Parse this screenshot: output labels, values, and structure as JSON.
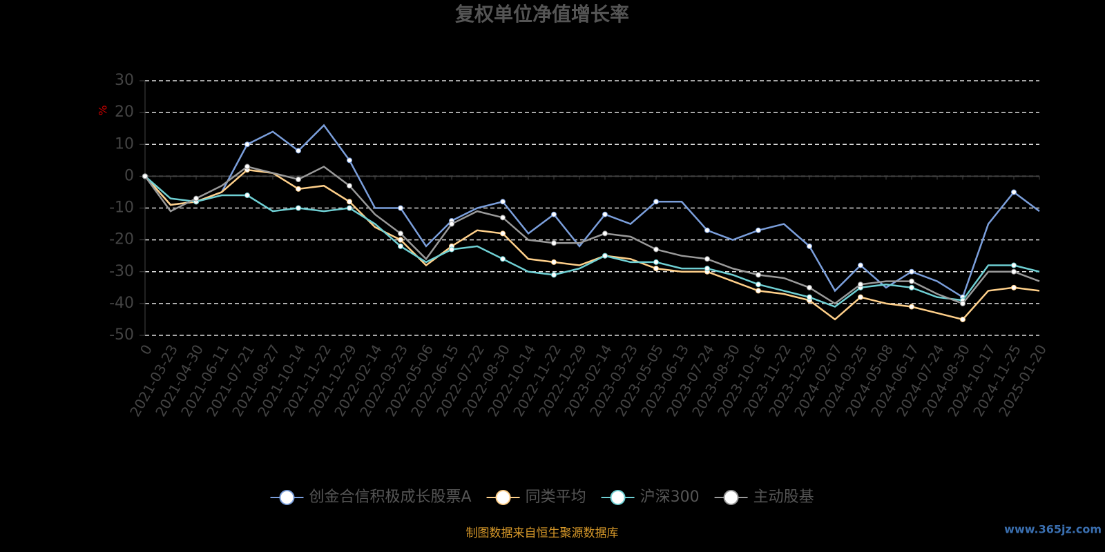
{
  "chart_data": {
    "type": "line",
    "title": "复权单位净值增长率",
    "y_label": "%",
    "source": "制图数据来自恒生聚源数据库",
    "watermark": "www.365jz.com",
    "categories": [
      "0",
      "2021-03-23",
      "2021-04-30",
      "2021-06-11",
      "2021-07-21",
      "2021-08-27",
      "2021-10-14",
      "2021-11-22",
      "2021-12-29",
      "2022-02-14",
      "2022-03-23",
      "2022-05-06",
      "2022-06-15",
      "2022-07-22",
      "2022-08-30",
      "2022-10-14",
      "2022-11-22",
      "2022-12-29",
      "2023-02-14",
      "2023-03-23",
      "2023-05-05",
      "2023-06-13",
      "2023-07-24",
      "2023-08-30",
      "2023-10-16",
      "2023-11-22",
      "2023-12-29",
      "2024-02-07",
      "2024-03-25",
      "2024-05-08",
      "2024-06-17",
      "2024-07-24",
      "2024-08-30",
      "2024-10-17",
      "2024-11-25",
      "2025-01-20"
    ],
    "series": [
      {
        "name": "创金合信积极成长股票A",
        "color": "#7b9fdc",
        "values": [
          0,
          -9,
          -8,
          -5,
          10,
          14,
          8,
          16,
          5,
          -10,
          -10,
          -22,
          -14,
          -10,
          -8,
          -18,
          -12,
          -22,
          -12,
          -15,
          -8,
          -8,
          -17,
          -20,
          -17,
          -15,
          -22,
          -36,
          -28,
          -35,
          -30,
          -33,
          -38,
          -15,
          -5,
          -11
        ]
      },
      {
        "name": "同类平均",
        "color": "#ffd08a",
        "values": [
          0,
          -9,
          -8,
          -5,
          2,
          1,
          -4,
          -3,
          -8,
          -16,
          -20,
          -28,
          -22,
          -17,
          -18,
          -26,
          -27,
          -28,
          -25,
          -26,
          -29,
          -30,
          -30,
          -33,
          -36,
          -37,
          -39,
          -45,
          -38,
          -40,
          -41,
          -43,
          -45,
          -36,
          -35,
          -36
        ]
      },
      {
        "name": "沪深300",
        "color": "#6fd0d4",
        "values": [
          0,
          -7,
          -8,
          -6,
          -6,
          -11,
          -10,
          -11,
          -10,
          -15,
          -22,
          -27,
          -23,
          -22,
          -26,
          -30,
          -31,
          -29,
          -25,
          -27,
          -27,
          -29,
          -29,
          -31,
          -34,
          -36,
          -38,
          -41,
          -35,
          -34,
          -35,
          -38,
          -39,
          -28,
          -28,
          -30
        ]
      },
      {
        "name": "主动股基",
        "color": "#9a9a9a",
        "values": [
          0,
          -11,
          -7,
          -3,
          3,
          1,
          -1,
          3,
          -3,
          -12,
          -18,
          -26,
          -15,
          -11,
          -13,
          -20,
          -21,
          -21,
          -18,
          -19,
          -23,
          -25,
          -26,
          -29,
          -31,
          -32,
          -35,
          -40,
          -34,
          -33,
          -33,
          -37,
          -40,
          -30,
          -30,
          -33
        ]
      }
    ],
    "ylim": [
      -50,
      30
    ],
    "yticks": [
      -50,
      -40,
      -30,
      -20,
      -10,
      0,
      10,
      20,
      30
    ],
    "grid": true
  }
}
